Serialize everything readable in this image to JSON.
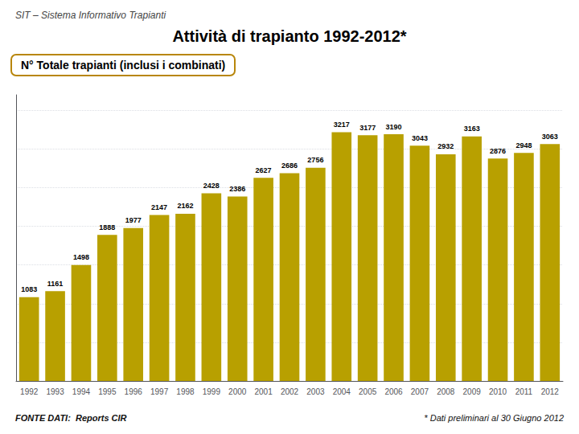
{
  "chart_data": {
    "type": "bar",
    "title": "Attività di trapianto 1992-2012*",
    "subtitle": "N° Totale trapianti (inclusi i combinati)",
    "annotations": [
      "SIT – Sistema Informativo Trapianti",
      "FONTE DATI:  Reports CIR",
      "* Dati preliminari al 30 Giugno 2012"
    ],
    "categories": [
      "1992",
      "1993",
      "1994",
      "1995",
      "1996",
      "1997",
      "1998",
      "1999",
      "2000",
      "2001",
      "2002",
      "2003",
      "2004",
      "2005",
      "2006",
      "2007",
      "2008",
      "2009",
      "2010",
      "2011",
      "2012"
    ],
    "values": [
      1083,
      1161,
      1498,
      1888,
      1977,
      2147,
      2162,
      2428,
      2386,
      2627,
      2686,
      2756,
      3217,
      3177,
      3190,
      3043,
      2932,
      3163,
      2876,
      2948,
      3063
    ],
    "color": "#B8A000",
    "ylim": [
      0,
      3700
    ],
    "yticks": [
      0,
      500,
      1000,
      1500,
      2000,
      2500,
      3000,
      3500
    ],
    "grid": true,
    "data_labels": true,
    "tick_labels": "x"
  }
}
